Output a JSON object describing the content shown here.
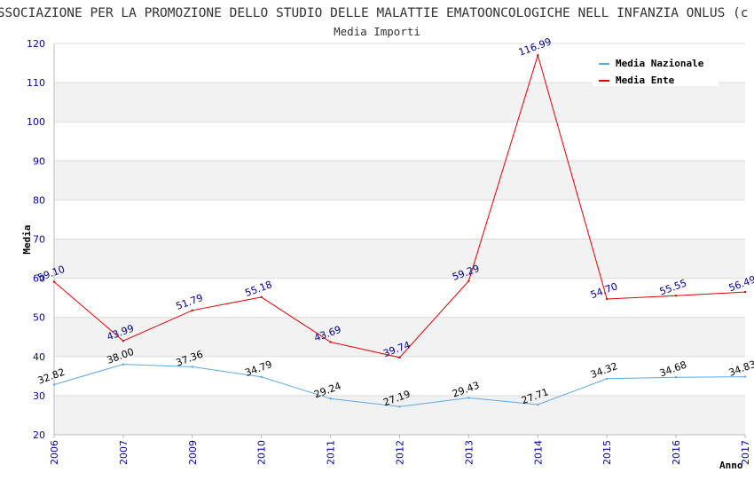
{
  "chart_data": {
    "type": "line",
    "title": "ASSOCIAZIONE PER LA PROMOZIONE DELLO STUDIO DELLE MALATTIE EMATOONCOLOGICHE NELL INFANZIA ONLUS (c",
    "subtitle": "Media Importi",
    "xlabel": "Anno",
    "ylabel": "Media",
    "ylim": [
      20,
      120
    ],
    "ytick_step": 10,
    "grid": true,
    "legend_position": "top-right",
    "categories": [
      "2006",
      "2007",
      "2009",
      "2010",
      "2011",
      "2012",
      "2013",
      "2014",
      "2015",
      "2016",
      "2017"
    ],
    "series": [
      {
        "name": "Media Nazionale",
        "color": "#5aa9e6",
        "label_color": "#000000",
        "values": [
          32.82,
          38.0,
          37.36,
          34.79,
          29.24,
          27.19,
          29.43,
          27.71,
          34.32,
          34.68,
          34.83
        ],
        "labels": [
          "32.82",
          "38.00",
          "37.36",
          "34.79",
          "29.24",
          "27.19",
          "29.43",
          "27.71",
          "34.32",
          "34.68",
          "34.83"
        ]
      },
      {
        "name": "Media Ente",
        "color": "#e00000",
        "label_color": "#00008b",
        "values": [
          59.1,
          43.99,
          51.79,
          55.18,
          43.69,
          39.74,
          59.29,
          116.99,
          54.7,
          55.55,
          56.49
        ],
        "labels": [
          "59.10",
          "43.99",
          "51.79",
          "55.18",
          "43.69",
          "39.74",
          "59.29",
          "116.99",
          "54.70",
          "55.55",
          "56.49"
        ]
      }
    ],
    "colors": {
      "band": "#f2f2f2",
      "gridline": "#dcdcdc",
      "axis": "#bbbbbb",
      "tick_label": "#0000aa",
      "title": "#333333"
    }
  }
}
